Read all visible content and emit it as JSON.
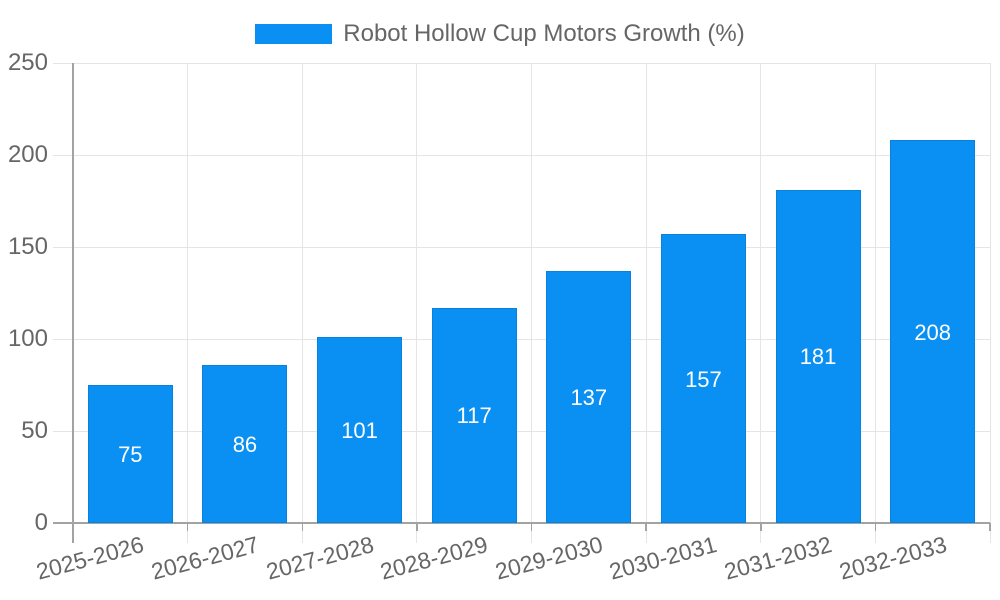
{
  "chart_data": {
    "type": "bar",
    "title": "Robot Hollow Cup Motors Growth (%)",
    "categories": [
      "2025-2026",
      "2026-2027",
      "2027-2028",
      "2028-2029",
      "2029-2030",
      "2030-2031",
      "2031-2032",
      "2032-2033"
    ],
    "values": [
      75,
      86,
      101,
      117,
      137,
      157,
      181,
      208
    ],
    "xlabel": "",
    "ylabel": "",
    "ylim": [
      0,
      250
    ],
    "yticks": [
      0,
      50,
      100,
      150,
      200,
      250
    ],
    "grid": true,
    "legend_position": "top-center",
    "value_label_position": "inside-center",
    "x_label_rotation_deg": -15,
    "colors": {
      "bar": "#0A8FF2",
      "value_label": "#FFFFFF",
      "axis_text": "#666666",
      "title_text": "#666666",
      "grid_line": "#E5E5E5",
      "axis_line": "#A3A3A3"
    }
  }
}
